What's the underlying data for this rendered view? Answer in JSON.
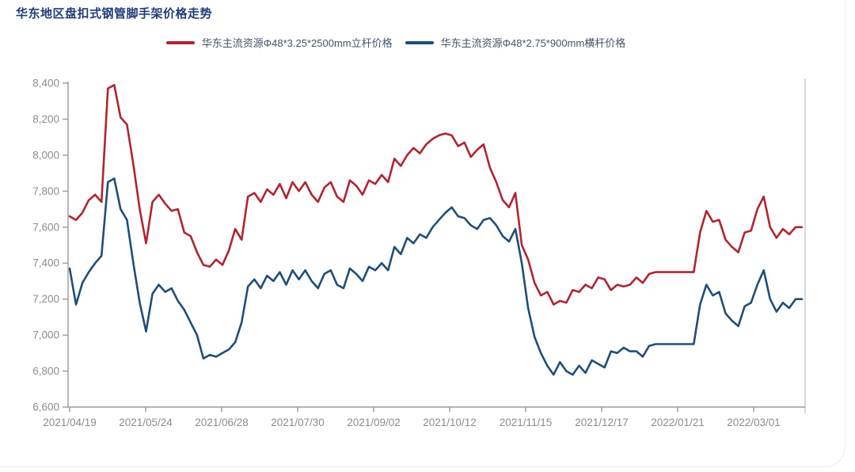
{
  "title": "华东地区盘扣式钢管脚手架价格走势",
  "colors": {
    "title": "#1e3c78",
    "legend_text": "#44526b",
    "axis_line": "#9a9a9a",
    "tick_label": "#8c8c8c",
    "right_border": "#d9d9d9",
    "background": "#ffffff"
  },
  "chart_data": {
    "type": "line",
    "title": "华东地区盘扣式钢管脚手架价格走势",
    "legend_position": "top",
    "grid": false,
    "y_axis": {
      "min": 6600,
      "max": 8400,
      "step": 200,
      "tick_labels": [
        "6,600",
        "6,800",
        "7,000",
        "7,200",
        "7,400",
        "7,600",
        "7,800",
        "8,000",
        "8,200",
        "8,400"
      ]
    },
    "x_axis": {
      "tick_labels": [
        "2021/04/19",
        "2021/05/24",
        "2021/06/28",
        "2021/07/30",
        "2021/09/02",
        "2021/10/12",
        "2021/11/15",
        "2021/12/17",
        "2022/01/21",
        "2022/03/01"
      ]
    },
    "series": [
      {
        "name": "华东主流资源Φ48*3.25*2500mm立杆价格",
        "color": "#b02432",
        "values": [
          7660,
          7640,
          7680,
          7750,
          7780,
          7740,
          8370,
          8390,
          8210,
          8170,
          7950,
          7700,
          7510,
          7740,
          7780,
          7730,
          7690,
          7700,
          7570,
          7550,
          7460,
          7390,
          7380,
          7420,
          7390,
          7470,
          7590,
          7530,
          7770,
          7790,
          7740,
          7810,
          7780,
          7840,
          7760,
          7850,
          7800,
          7850,
          7780,
          7740,
          7820,
          7850,
          7770,
          7740,
          7860,
          7830,
          7780,
          7860,
          7840,
          7890,
          7850,
          7980,
          7940,
          8000,
          8040,
          8010,
          8060,
          8090,
          8110,
          8120,
          8110,
          8050,
          8070,
          7990,
          8030,
          8060,
          7930,
          7850,
          7750,
          7710,
          7790,
          7500,
          7420,
          7290,
          7220,
          7240,
          7170,
          7190,
          7180,
          7250,
          7240,
          7280,
          7260,
          7320,
          7310,
          7250,
          7280,
          7270,
          7280,
          7320,
          7290,
          7340,
          7350,
          7350,
          7350,
          7350,
          7350,
          7350,
          7350,
          7570,
          7690,
          7630,
          7640,
          7530,
          7490,
          7460,
          7570,
          7580,
          7700,
          7770,
          7600,
          7540,
          7590,
          7560,
          7600,
          7600
        ]
      },
      {
        "name": "华东主流资源Φ48*2.75*900mm横杆价格",
        "color": "#1f4e79",
        "values": [
          7370,
          7170,
          7290,
          7350,
          7400,
          7440,
          7850,
          7870,
          7700,
          7640,
          7400,
          7180,
          7020,
          7230,
          7280,
          7240,
          7260,
          7190,
          7140,
          7070,
          7000,
          6870,
          6890,
          6880,
          6900,
          6920,
          6960,
          7070,
          7270,
          7310,
          7260,
          7330,
          7300,
          7350,
          7280,
          7360,
          7310,
          7360,
          7300,
          7260,
          7340,
          7360,
          7280,
          7260,
          7370,
          7340,
          7300,
          7380,
          7360,
          7400,
          7360,
          7490,
          7450,
          7540,
          7510,
          7560,
          7540,
          7600,
          7640,
          7680,
          7710,
          7660,
          7650,
          7610,
          7590,
          7640,
          7650,
          7610,
          7550,
          7520,
          7590,
          7400,
          7150,
          6990,
          6900,
          6830,
          6780,
          6850,
          6800,
          6780,
          6830,
          6790,
          6860,
          6840,
          6820,
          6910,
          6900,
          6930,
          6910,
          6910,
          6880,
          6940,
          6950,
          6950,
          6950,
          6950,
          6950,
          6950,
          6950,
          7170,
          7280,
          7220,
          7240,
          7120,
          7080,
          7050,
          7160,
          7180,
          7280,
          7360,
          7200,
          7130,
          7180,
          7150,
          7200,
          7200
        ]
      }
    ]
  }
}
